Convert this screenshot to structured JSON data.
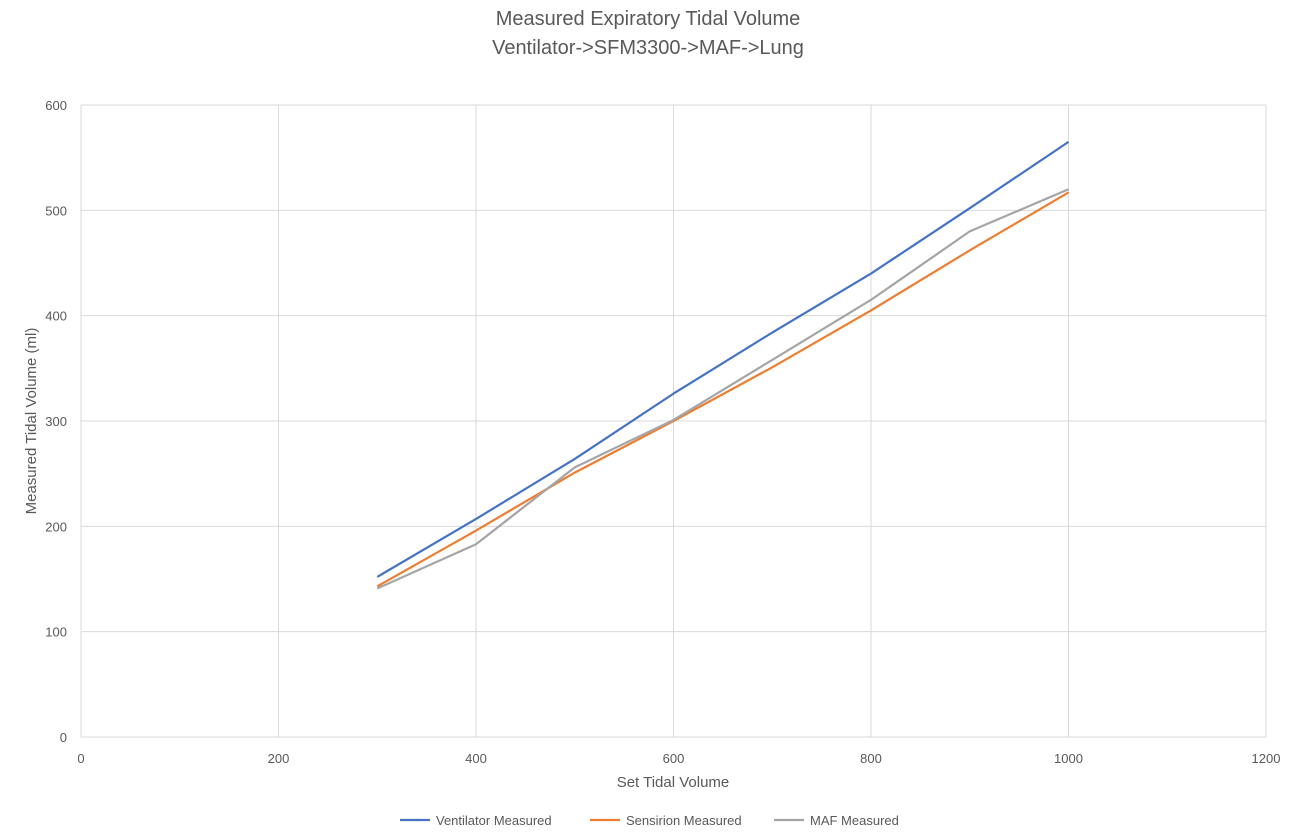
{
  "chart_data": {
    "type": "line",
    "title": "Measured Expiratory Tidal Volume",
    "subtitle": "Ventilator->SFM3300->MAF->Lung",
    "xlabel": "Set Tidal Volume",
    "ylabel": "Measured Tidal Volume (ml)",
    "xlim": [
      0,
      1200
    ],
    "ylim": [
      0,
      600
    ],
    "xticks": [
      0,
      200,
      400,
      600,
      800,
      1000,
      1200
    ],
    "yticks": [
      0,
      100,
      200,
      300,
      400,
      500,
      600
    ],
    "grid": true,
    "legend_position": "bottom",
    "x": [
      300,
      400,
      500,
      600,
      700,
      800,
      900,
      1000
    ],
    "series": [
      {
        "name": "Ventilator Measured",
        "color": "#4472c4",
        "values": [
          152,
          207,
          264,
          326,
          384,
          440,
          502,
          565
        ]
      },
      {
        "name": "Sensirion Measured",
        "color": "#ed7d31",
        "values": [
          143,
          196,
          251,
          300,
          351,
          405,
          462,
          517
        ]
      },
      {
        "name": "MAF Measured",
        "color": "#a5a5a5",
        "values": [
          141,
          183,
          256,
          301,
          358,
          415,
          480,
          520
        ]
      }
    ]
  }
}
